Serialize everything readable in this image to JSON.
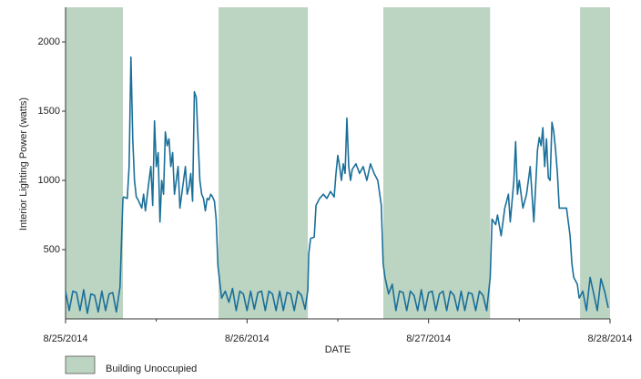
{
  "chart_data": {
    "type": "line",
    "ylabel": "Interior Lighting Power (watts)",
    "xlabel": "DATE",
    "color": "#1a6f99",
    "xlim": [
      0,
      3
    ],
    "xticks": [
      {
        "value": 0,
        "label": "8/25/2014"
      },
      {
        "value": 1,
        "label": "8/26/2014"
      },
      {
        "value": 2,
        "label": "8/27/2014"
      },
      {
        "value": 3,
        "label": "8/28/2014"
      }
    ],
    "xminor_ticks": [
      0.5,
      1.5,
      2.5
    ],
    "ylim": [
      0,
      2250
    ],
    "yticks": [
      500,
      1000,
      1500,
      2000
    ],
    "shaded": {
      "name": "Building Unoccupied",
      "color": "#bcd4c2",
      "ranges": [
        [
          0,
          0.316
        ],
        [
          0.843,
          1.335
        ],
        [
          1.751,
          2.339
        ],
        [
          2.835,
          3
        ]
      ]
    },
    "x": [
      0,
      0.02,
      0.04,
      0.06,
      0.08,
      0.1,
      0.12,
      0.14,
      0.16,
      0.18,
      0.2,
      0.22,
      0.24,
      0.26,
      0.28,
      0.3,
      0.316,
      0.32,
      0.34,
      0.35,
      0.36,
      0.37,
      0.38,
      0.39,
      0.4,
      0.42,
      0.43,
      0.44,
      0.46,
      0.47,
      0.48,
      0.49,
      0.5,
      0.51,
      0.52,
      0.53,
      0.54,
      0.55,
      0.56,
      0.57,
      0.58,
      0.59,
      0.6,
      0.61,
      0.62,
      0.63,
      0.64,
      0.65,
      0.66,
      0.67,
      0.68,
      0.69,
      0.7,
      0.71,
      0.72,
      0.73,
      0.74,
      0.75,
      0.76,
      0.77,
      0.78,
      0.79,
      0.8,
      0.81,
      0.82,
      0.83,
      0.84,
      0.86,
      0.88,
      0.9,
      0.92,
      0.94,
      0.96,
      0.98,
      1,
      1.02,
      1.04,
      1.06,
      1.08,
      1.1,
      1.12,
      1.14,
      1.16,
      1.18,
      1.2,
      1.22,
      1.24,
      1.26,
      1.28,
      1.3,
      1.32,
      1.335,
      1.34,
      1.35,
      1.37,
      1.38,
      1.4,
      1.42,
      1.44,
      1.46,
      1.48,
      1.49,
      1.5,
      1.51,
      1.52,
      1.53,
      1.54,
      1.55,
      1.56,
      1.57,
      1.58,
      1.6,
      1.62,
      1.64,
      1.66,
      1.68,
      1.7,
      1.72,
      1.74,
      1.75,
      1.76,
      1.78,
      1.8,
      1.82,
      1.84,
      1.86,
      1.88,
      1.9,
      1.92,
      1.94,
      1.96,
      1.98,
      2,
      2.02,
      2.04,
      2.06,
      2.08,
      2.1,
      2.12,
      2.14,
      2.16,
      2.18,
      2.2,
      2.22,
      2.24,
      2.26,
      2.28,
      2.3,
      2.32,
      2.34,
      2.35,
      2.37,
      2.38,
      2.4,
      2.42,
      2.44,
      2.45,
      2.47,
      2.48,
      2.49,
      2.5,
      2.52,
      2.54,
      2.56,
      2.58,
      2.6,
      2.61,
      2.62,
      2.63,
      2.64,
      2.65,
      2.66,
      2.67,
      2.68,
      2.69,
      2.7,
      2.71,
      2.72,
      2.74,
      2.76,
      2.78,
      2.79,
      2.8,
      2.82,
      2.83,
      2.85,
      2.87,
      2.89,
      2.91,
      2.93,
      2.95,
      2.97,
      2.99
    ],
    "values": [
      200,
      60,
      200,
      190,
      60,
      210,
      40,
      180,
      170,
      50,
      200,
      60,
      180,
      190,
      50,
      230,
      870,
      880,
      870,
      1100,
      1890,
      1300,
      1000,
      880,
      860,
      800,
      900,
      780,
      1000,
      1100,
      820,
      1430,
      1100,
      1200,
      700,
      1000,
      900,
      1350,
      1250,
      1300,
      1100,
      1200,
      900,
      1000,
      1100,
      800,
      900,
      1000,
      1100,
      900,
      950,
      1050,
      850,
      1640,
      1600,
      1300,
      1000,
      900,
      870,
      780,
      870,
      860,
      900,
      880,
      850,
      720,
      380,
      150,
      200,
      120,
      220,
      60,
      200,
      180,
      60,
      200,
      70,
      190,
      200,
      60,
      200,
      180,
      60,
      200,
      60,
      190,
      180,
      60,
      200,
      170,
      70,
      210,
      470,
      580,
      590,
      820,
      870,
      900,
      870,
      920,
      880,
      1050,
      1180,
      1100,
      1000,
      1120,
      1050,
      1450,
      1100,
      1000,
      1080,
      1120,
      1050,
      1100,
      1000,
      1120,
      1050,
      1000,
      820,
      400,
      300,
      180,
      250,
      60,
      200,
      190,
      60,
      200,
      170,
      60,
      210,
      60,
      190,
      200,
      60,
      180,
      200,
      60,
      200,
      170,
      60,
      200,
      60,
      190,
      180,
      60,
      200,
      170,
      60,
      300,
      720,
      680,
      750,
      600,
      800,
      900,
      700,
      1000,
      1280,
      900,
      1000,
      800,
      900,
      1100,
      700,
      1220,
      1310,
      1250,
      1380,
      1100,
      1300,
      1020,
      1000,
      1420,
      1350,
      1220,
      1050,
      800,
      800,
      800,
      600,
      400,
      300,
      250,
      150,
      200,
      60,
      300,
      180,
      60,
      290,
      200,
      80
    ]
  }
}
